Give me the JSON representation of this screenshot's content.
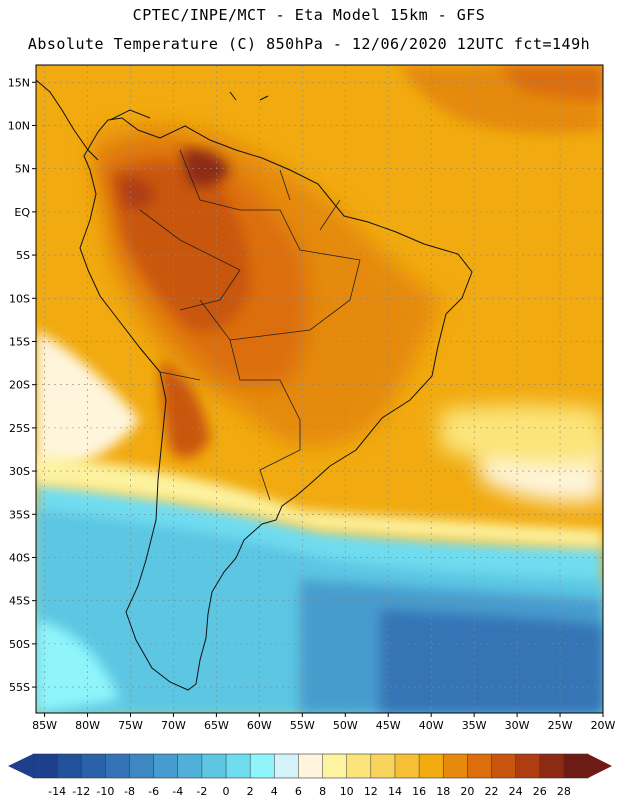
{
  "header": {
    "line1": "CPTEC/INPE/MCT -  Eta Model 15km - GFS",
    "line2": "Absolute Temperature (C) 850hPa - 12/06/2020 12UTC fct=149h"
  },
  "map": {
    "lat_labels": [
      "15N",
      "10N",
      "5N",
      "EQ",
      "5S",
      "10S",
      "15S",
      "20S",
      "25S",
      "30S",
      "35S",
      "40S",
      "45S",
      "50S",
      "55S"
    ],
    "lon_labels": [
      "85W",
      "80W",
      "75W",
      "70W",
      "65W",
      "60W",
      "55W",
      "50W",
      "45W",
      "40W",
      "35W",
      "30W",
      "25W",
      "20W"
    ],
    "lon_range": [
      -86,
      -20
    ],
    "lat_range": [
      17,
      -58
    ]
  },
  "colorbar": {
    "labels": [
      "-14",
      "-12",
      "-10",
      "-8",
      "-6",
      "-4",
      "-2",
      "0",
      "2",
      "4",
      "6",
      "8",
      "10",
      "12",
      "14",
      "16",
      "18",
      "20",
      "22",
      "24",
      "26",
      "28"
    ],
    "colors": [
      "#1e3f8c",
      "#22519b",
      "#2a62aa",
      "#3474b6",
      "#3d88c2",
      "#469cce",
      "#50b0d9",
      "#5cc6e3",
      "#6fdcf0",
      "#8ff5fb",
      "#d3f3f8",
      "#fef5dc",
      "#fdf3a0",
      "#fbe57a",
      "#f9d45c",
      "#f5bf36",
      "#f1aa0f",
      "#e58a0f",
      "#dc6e0d",
      "#c9560e",
      "#ae3e12",
      "#8d2a14",
      "#6e1a15"
    ]
  },
  "icons": {
    "left_arrow": "triangle-left-icon",
    "right_arrow": "triangle-right-icon"
  }
}
